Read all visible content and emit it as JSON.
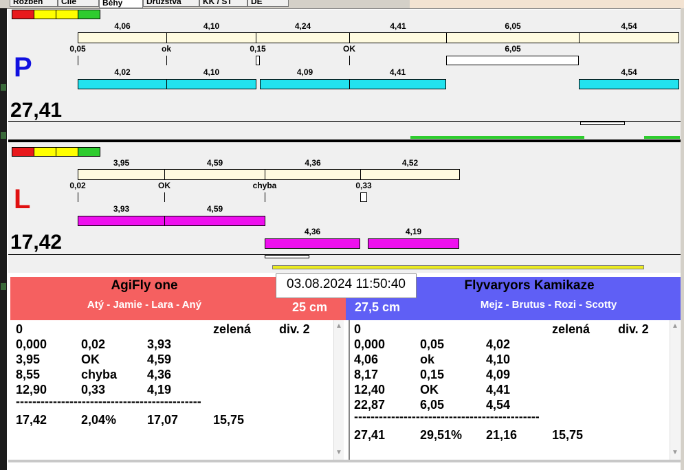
{
  "tabs": [
    "Rozběh",
    "Cíle",
    "Běhy",
    "Družstva",
    "KK / ST",
    "DE"
  ],
  "traffic_colors": [
    "#e8191c",
    "#ffff00",
    "#ffff00",
    "#2ecc2e"
  ],
  "lane_p": {
    "letter": "P",
    "letter_color": "#1010e0",
    "total": "27,41",
    "top_splits": [
      "4,06",
      "4,10",
      "4,24",
      "4,41",
      "6,05",
      "4,54"
    ],
    "faults": [
      "0,05",
      "ok",
      "0,15",
      "OK",
      "6,05"
    ],
    "bottom_splits": [
      "4,02",
      "4,10",
      "4,09",
      "4,41",
      "4,54"
    ],
    "bottom_color": "#22e2ee"
  },
  "lane_l": {
    "letter": "L",
    "letter_color": "#e01010",
    "total": "17,42",
    "top_splits": [
      "3,95",
      "4,59",
      "4,36",
      "4,52"
    ],
    "faults": [
      "0,02",
      "OK",
      "chyba",
      "0,33"
    ],
    "bottom_splits": [
      "3,93",
      "4,59"
    ],
    "bottom_splits2": [
      "4,36",
      "4,19"
    ],
    "bottom_color": "#ee10ee"
  },
  "datetime": "03.08.2024 11:50:40",
  "team_left": {
    "name": "AgiFly one",
    "dogs": "Atý - Jamie - Lara - Aný",
    "height": "25 cm",
    "color": "#f56060",
    "header": [
      "0",
      "",
      "",
      "zelená",
      "div. 2"
    ],
    "rows": [
      [
        "0,000",
        "0,02",
        "3,93"
      ],
      [
        "3,95",
        "OK",
        "4,59"
      ],
      [
        "8,55",
        "chyba",
        "4,36"
      ],
      [
        "12,90",
        "0,33",
        "4,19"
      ]
    ],
    "separator": "------------------------------------------------",
    "summary": [
      "17,42",
      "2,04%",
      "17,07",
      "15,75"
    ]
  },
  "team_right": {
    "name": "Flyvaryors Kamikaze",
    "dogs": "Mejz - Brutus - Rozi - Scotty",
    "height": "27,5 cm",
    "color": "#5f5ff5",
    "header": [
      "0",
      "",
      "",
      "zelená",
      "div. 2"
    ],
    "rows": [
      [
        "0,000",
        "0,05",
        "4,02"
      ],
      [
        "4,06",
        "ok",
        "4,10"
      ],
      [
        "8,17",
        "0,15",
        "4,09"
      ],
      [
        "12,40",
        "OK",
        "4,41"
      ],
      [
        "22,87",
        "6,05",
        "4,54"
      ]
    ],
    "separator": "------------------------------------------------",
    "summary": [
      "27,41",
      "29,51%",
      "21,16",
      "15,75"
    ]
  }
}
